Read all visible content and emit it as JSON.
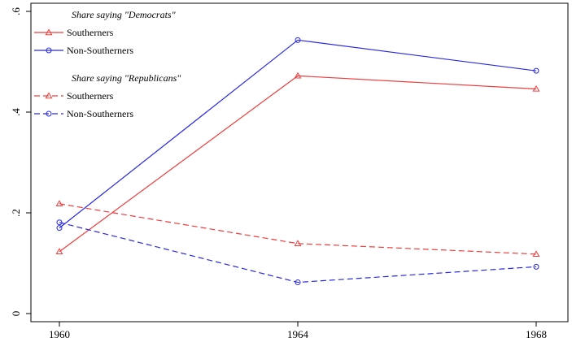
{
  "chart_data": {
    "type": "line",
    "title": "",
    "xlabel": "",
    "ylabel": "",
    "x": [
      1960,
      1964,
      1968
    ],
    "x_tick_labels": [
      "1960",
      "1964",
      "1968"
    ],
    "y_ticks": [
      0,
      0.2,
      0.4,
      0.6
    ],
    "y_tick_labels": [
      "0",
      ".2",
      ".4",
      ".6"
    ],
    "ylim": [
      0,
      0.6
    ],
    "grid": false,
    "legend_placement": "top-left",
    "legend_groups": [
      {
        "heading": "Share saying \"Democrats\"",
        "series": [
          0,
          1
        ]
      },
      {
        "heading": "Share saying \"Republicans\"",
        "series": [
          2,
          3
        ]
      }
    ],
    "series": [
      {
        "name": "Southerners",
        "values": [
          0.123,
          0.472,
          0.446
        ],
        "color": "#f03c3c",
        "marker": "triangle",
        "dash": "solid"
      },
      {
        "name": "Non-Southerners",
        "values": [
          0.17,
          0.543,
          0.482
        ],
        "color": "#2828e6",
        "marker": "circle",
        "dash": "solid"
      },
      {
        "name": "Southerners",
        "values": [
          0.218,
          0.139,
          0.118
        ],
        "color": "#f03c3c",
        "marker": "triangle",
        "dash": "dashed"
      },
      {
        "name": "Non-Southerners",
        "values": [
          0.181,
          0.062,
          0.093
        ],
        "color": "#2828e6",
        "marker": "circle",
        "dash": "dashed"
      }
    ]
  }
}
